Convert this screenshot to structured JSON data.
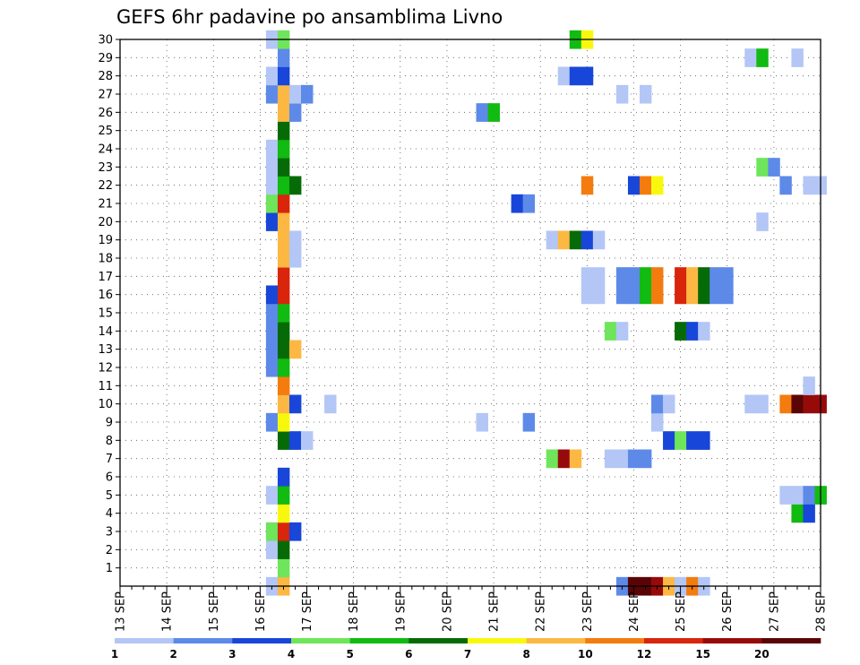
{
  "chart_data": {
    "type": "heatmap",
    "title": "GEFS 6hr padavine po ansamblima Livno",
    "x_tick_labels": [
      "13 SEP",
      "14 SEP",
      "15 SEP",
      "16 SEP",
      "17 SEP",
      "18 SEP",
      "19 SEP",
      "20 SEP",
      "21 SEP",
      "22 SEP",
      "23 SEP",
      "24 SEP",
      "25 SEP",
      "26 SEP",
      "27 SEP",
      "28 SEP"
    ],
    "y_tick_labels": [
      "1",
      "2",
      "3",
      "4",
      "5",
      "6",
      "7",
      "8",
      "9",
      "10",
      "11",
      "12",
      "13",
      "14",
      "15",
      "16",
      "17",
      "18",
      "19",
      "20",
      "21",
      "22",
      "23",
      "24",
      "25",
      "26",
      "27",
      "28",
      "29",
      "30"
    ],
    "xlim": [
      "13 SEP 00Z",
      "28 SEP 00Z"
    ],
    "ylim": [
      0,
      30
    ],
    "x_step_hours": 6,
    "grid": true,
    "legend": {
      "placement": "bottom",
      "labels": [
        "1",
        "2",
        "3",
        "4",
        "5",
        "6",
        "7",
        "8",
        "10",
        "12",
        "15",
        "20"
      ],
      "colors": [
        "#b3c6f6",
        "#5d8ae8",
        "#1846d8",
        "#6ee55a",
        "#11bb11",
        "#066b06",
        "#f8f80e",
        "#fcb843",
        "#f47b0e",
        "#d8250c",
        "#970a0a",
        "#5a0505"
      ]
    },
    "colors": {
      "c1": "#b3c6f6",
      "c2": "#5d8ae8",
      "c3": "#1846d8",
      "c4": "#6ee55a",
      "c5": "#11bb11",
      "c6": "#066b06",
      "c7": "#f8f80e",
      "c8": "#fcb843",
      "c9": "#f47b0e",
      "c10": "#d8250c",
      "c11": "#970a0a",
      "c12": "#5a0505"
    },
    "note_cells": "each cell: [member, step index (6h steps from 13 SEP 00Z), color class 1-12]",
    "cells": [
      [
        0,
        13,
        1
      ],
      [
        0,
        14,
        8
      ],
      [
        0,
        43,
        2
      ],
      [
        0,
        44,
        12
      ],
      [
        0,
        45,
        12
      ],
      [
        0,
        46,
        11
      ],
      [
        0,
        47,
        8
      ],
      [
        0,
        48,
        1
      ],
      [
        0,
        49,
        9
      ],
      [
        0,
        50,
        1
      ],
      [
        1,
        14,
        4
      ],
      [
        2,
        13,
        1
      ],
      [
        2,
        14,
        6
      ],
      [
        3,
        13,
        4
      ],
      [
        3,
        14,
        10
      ],
      [
        3,
        15,
        3
      ],
      [
        4,
        14,
        7
      ],
      [
        4,
        58,
        5
      ],
      [
        4,
        59,
        3
      ],
      [
        5,
        13,
        1
      ],
      [
        5,
        14,
        5
      ],
      [
        5,
        57,
        1
      ],
      [
        5,
        58,
        1
      ],
      [
        5,
        59,
        2
      ],
      [
        5,
        60,
        5
      ],
      [
        6,
        14,
        3
      ],
      [
        7,
        37,
        4
      ],
      [
        7,
        38,
        11
      ],
      [
        7,
        39,
        8
      ],
      [
        7,
        42,
        1
      ],
      [
        7,
        43,
        1
      ],
      [
        7,
        44,
        2
      ],
      [
        7,
        45,
        2
      ],
      [
        8,
        14,
        6
      ],
      [
        8,
        15,
        3
      ],
      [
        8,
        16,
        1
      ],
      [
        8,
        47,
        3
      ],
      [
        8,
        48,
        4
      ],
      [
        8,
        49,
        3
      ],
      [
        8,
        50,
        3
      ],
      [
        9,
        13,
        2
      ],
      [
        9,
        14,
        7
      ],
      [
        9,
        31,
        1
      ],
      [
        9,
        35,
        2
      ],
      [
        9,
        46,
        1
      ],
      [
        10,
        14,
        8
      ],
      [
        10,
        15,
        3
      ],
      [
        10,
        18,
        1
      ],
      [
        10,
        46,
        2
      ],
      [
        10,
        47,
        1
      ],
      [
        10,
        54,
        1
      ],
      [
        10,
        55,
        1
      ],
      [
        10,
        57,
        9
      ],
      [
        10,
        58,
        12
      ],
      [
        10,
        59,
        11
      ],
      [
        10,
        60,
        11
      ],
      [
        11,
        14,
        9
      ],
      [
        11,
        59,
        1
      ],
      [
        12,
        13,
        2
      ],
      [
        12,
        14,
        5
      ],
      [
        13,
        13,
        2
      ],
      [
        13,
        14,
        6
      ],
      [
        13,
        15,
        8
      ],
      [
        14,
        13,
        2
      ],
      [
        14,
        14,
        6
      ],
      [
        14,
        42,
        4
      ],
      [
        14,
        43,
        1
      ],
      [
        14,
        48,
        6
      ],
      [
        14,
        49,
        3
      ],
      [
        14,
        50,
        1
      ],
      [
        15,
        13,
        2
      ],
      [
        15,
        14,
        5
      ],
      [
        16,
        13,
        3
      ],
      [
        16,
        14,
        10
      ],
      [
        16,
        40,
        1
      ],
      [
        16,
        41,
        1
      ],
      [
        16,
        43,
        2
      ],
      [
        16,
        44,
        2
      ],
      [
        16,
        45,
        5
      ],
      [
        16,
        46,
        9
      ],
      [
        16,
        48,
        10
      ],
      [
        16,
        49,
        8
      ],
      [
        16,
        50,
        6
      ],
      [
        16,
        51,
        2
      ],
      [
        16,
        52,
        2
      ],
      [
        17,
        14,
        10
      ],
      [
        17,
        40,
        1
      ],
      [
        17,
        41,
        1
      ],
      [
        17,
        43,
        2
      ],
      [
        17,
        44,
        2
      ],
      [
        17,
        45,
        5
      ],
      [
        17,
        46,
        9
      ],
      [
        17,
        48,
        10
      ],
      [
        17,
        49,
        8
      ],
      [
        17,
        50,
        6
      ],
      [
        17,
        51,
        2
      ],
      [
        17,
        52,
        2
      ],
      [
        18,
        14,
        8
      ],
      [
        18,
        15,
        1
      ],
      [
        19,
        14,
        8
      ],
      [
        19,
        15,
        1
      ],
      [
        19,
        37,
        1
      ],
      [
        19,
        38,
        8
      ],
      [
        19,
        39,
        6
      ],
      [
        19,
        40,
        3
      ],
      [
        19,
        41,
        1
      ],
      [
        20,
        13,
        3
      ],
      [
        20,
        14,
        8
      ],
      [
        20,
        55,
        1
      ],
      [
        21,
        13,
        4
      ],
      [
        21,
        14,
        10
      ],
      [
        21,
        34,
        3
      ],
      [
        21,
        35,
        2
      ],
      [
        22,
        13,
        1
      ],
      [
        22,
        14,
        5
      ],
      [
        22,
        15,
        6
      ],
      [
        22,
        40,
        9
      ],
      [
        22,
        44,
        3
      ],
      [
        22,
        45,
        9
      ],
      [
        22,
        46,
        7
      ],
      [
        22,
        57,
        2
      ],
      [
        22,
        59,
        1
      ],
      [
        22,
        60,
        1
      ],
      [
        23,
        13,
        1
      ],
      [
        23,
        14,
        6
      ],
      [
        23,
        55,
        4
      ],
      [
        23,
        56,
        2
      ],
      [
        24,
        13,
        1
      ],
      [
        24,
        14,
        5
      ],
      [
        25,
        14,
        6
      ],
      [
        26,
        14,
        8
      ],
      [
        26,
        15,
        2
      ],
      [
        26,
        31,
        2
      ],
      [
        26,
        32,
        5
      ],
      [
        27,
        13,
        2
      ],
      [
        27,
        14,
        8
      ],
      [
        27,
        15,
        1
      ],
      [
        27,
        16,
        2
      ],
      [
        27,
        43,
        1
      ],
      [
        27,
        45,
        1
      ],
      [
        28,
        13,
        1
      ],
      [
        28,
        14,
        3
      ],
      [
        28,
        38,
        1
      ],
      [
        28,
        39,
        3
      ],
      [
        28,
        40,
        3
      ],
      [
        29,
        14,
        2
      ],
      [
        29,
        54,
        1
      ],
      [
        29,
        55,
        5
      ],
      [
        29,
        58,
        1
      ],
      [
        30,
        13,
        1
      ],
      [
        30,
        14,
        4
      ],
      [
        30,
        39,
        5
      ],
      [
        30,
        40,
        7
      ]
    ]
  }
}
